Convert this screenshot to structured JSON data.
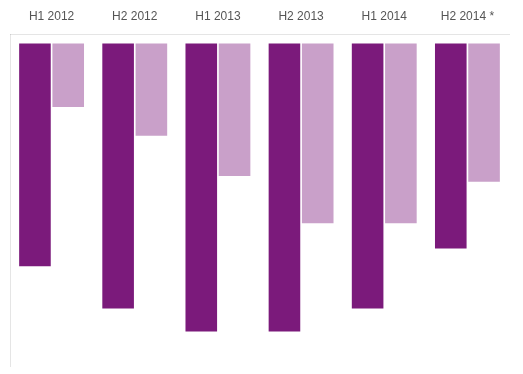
{
  "chart_data": {
    "type": "bar",
    "categories": [
      "H1 2012",
      "H2 2012",
      "H1 2013",
      "H2 2013",
      "H1 2014",
      "H2 2014 *"
    ],
    "series": [
      {
        "color": "#C9A0C9",
        "values": [
          -55.0,
          -80.0,
          -115.0,
          -156.0,
          -156.0,
          -120.0
        ]
      },
      {
        "color": "#7B1A7B",
        "values": [
          -193.4,
          -230.0,
          -250.0,
          -250.0,
          -230.0,
          -177.9
        ]
      }
    ],
    "ylim": [
      -280,
      8
    ],
    "grid": false,
    "tick_labels": "x"
  }
}
